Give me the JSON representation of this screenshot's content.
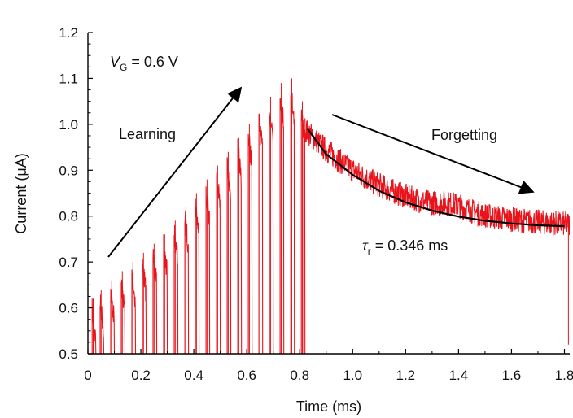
{
  "chart_data": {
    "type": "line",
    "xlabel": "Time (ms)",
    "ylabel": "Current (μA)",
    "xlim": [
      0,
      1.82
    ],
    "ylim": [
      0.5,
      1.2
    ],
    "x_ticks": [
      "0",
      "0.2",
      "0.4",
      "0.6",
      "0.8",
      "1.0",
      "1.2",
      "1.4",
      "1.6",
      "1.8"
    ],
    "y_ticks": [
      "0.5",
      "0.6",
      "0.7",
      "0.8",
      "0.9",
      "1.0",
      "1.1",
      "1.2"
    ],
    "grid": false,
    "colors": {
      "trace": "#e8141c",
      "fit": "#000000",
      "arrow": "#000000"
    },
    "series": [
      {
        "label_note": "pulsed current trace (red)",
        "pulse_times_ms": [
          0.02,
          0.05,
          0.09,
          0.13,
          0.17,
          0.21,
          0.25,
          0.29,
          0.33,
          0.37,
          0.41,
          0.45,
          0.49,
          0.53,
          0.57,
          0.61,
          0.65,
          0.69,
          0.73,
          0.77,
          0.81
        ],
        "pulse_peaks_uA": [
          0.62,
          0.64,
          0.66,
          0.68,
          0.7,
          0.72,
          0.74,
          0.76,
          0.79,
          0.82,
          0.85,
          0.88,
          0.91,
          0.94,
          0.97,
          1.0,
          1.03,
          1.06,
          1.09,
          1.1,
          1.05
        ],
        "decay": {
          "start_ms": 0.82,
          "start_uA": 0.99,
          "end_ms": 1.82,
          "asymptote_uA": 0.77
        }
      },
      {
        "label_note": "exponential fit (black)",
        "x": [
          0.83,
          0.9,
          1.0,
          1.1,
          1.2,
          1.3,
          1.4,
          1.5,
          1.6,
          1.7,
          1.8
        ],
        "y": [
          0.99,
          0.935,
          0.89,
          0.855,
          0.83,
          0.812,
          0.799,
          0.79,
          0.784,
          0.78,
          0.778
        ]
      }
    ],
    "annotations": {
      "vg_symbol": "V",
      "vg_sub": "G",
      "vg_value": " = 0.6 V",
      "learning": "Learning",
      "forgetting": "Forgetting",
      "tau_symbol": "τ",
      "tau_sub": "r",
      "tau_value": " = 0.346 ms"
    }
  }
}
